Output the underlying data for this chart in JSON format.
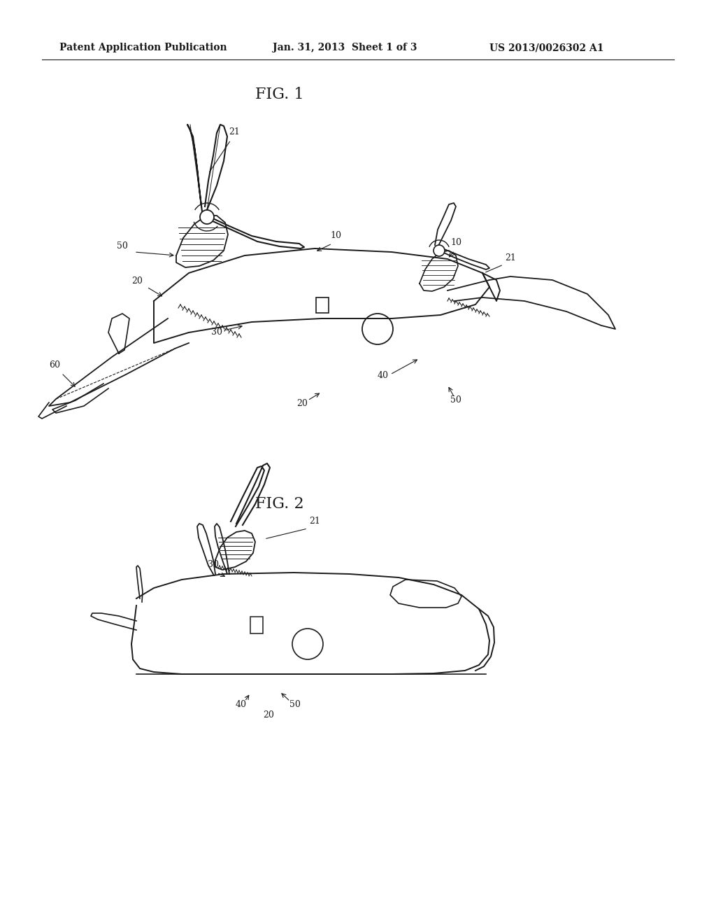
{
  "background_color": "#ffffff",
  "header_left": "Patent Application Publication",
  "header_center": "Jan. 31, 2013  Sheet 1 of 3",
  "header_right": "US 2013/0026302 A1",
  "fig1_label": "FIG. 1",
  "fig2_label": "FIG. 2",
  "line_color": "#1a1a1a",
  "text_color": "#1a1a1a",
  "header_fontsize": 10,
  "fig_label_fontsize": 16,
  "ref_fontsize": 9,
  "line_width": 1.2
}
